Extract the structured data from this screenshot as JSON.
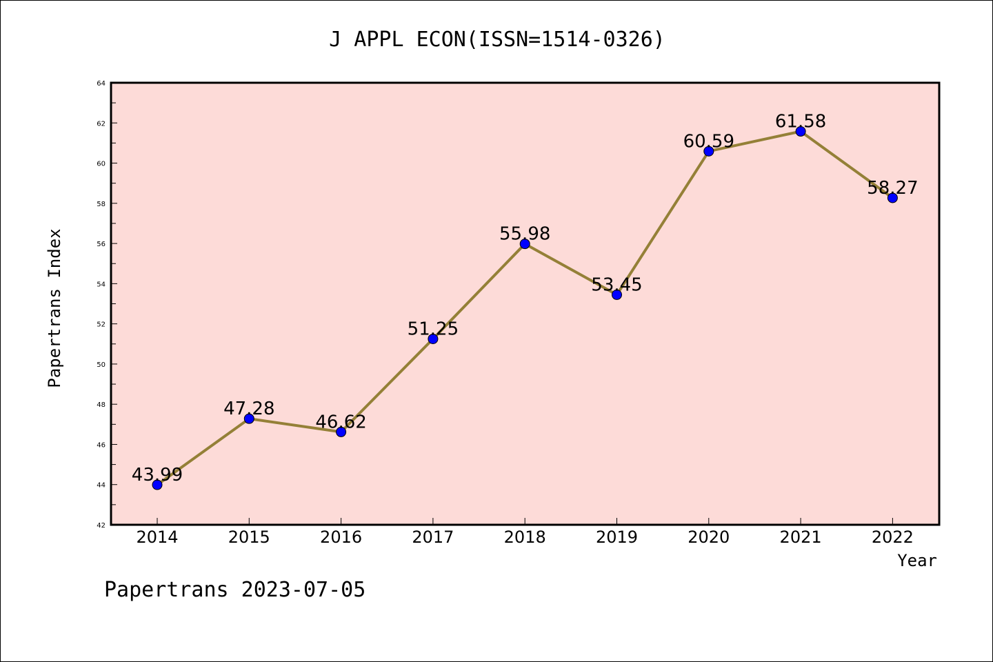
{
  "footer": "Papertrans 2023-07-05",
  "colors": {
    "plot_bg": "#fddbd8",
    "line": "#948037",
    "marker": "#0000ff",
    "axis": "#000000"
  },
  "chart_data": {
    "type": "line",
    "title": "J APPL ECON(ISSN=1514-0326)",
    "xlabel": "Year",
    "ylabel": "Papertrans Index",
    "categories": [
      "2014",
      "2015",
      "2016",
      "2017",
      "2018",
      "2019",
      "2020",
      "2021",
      "2022"
    ],
    "series": [
      {
        "values": [
          43.99,
          47.28,
          46.62,
          51.25,
          55.98,
          53.45,
          60.59,
          61.58,
          58.27
        ],
        "labels": [
          "43.99",
          "47.28",
          "46.62",
          "51.25",
          "55.98",
          "53.45",
          "60.59",
          "61.58",
          "58.27"
        ]
      }
    ],
    "ylim": [
      42,
      64
    ],
    "yticks": [
      "42",
      "44",
      "46",
      "48",
      "50",
      "52",
      "54",
      "56",
      "58",
      "60",
      "62",
      "64"
    ],
    "grid": false,
    "legend": "none"
  }
}
